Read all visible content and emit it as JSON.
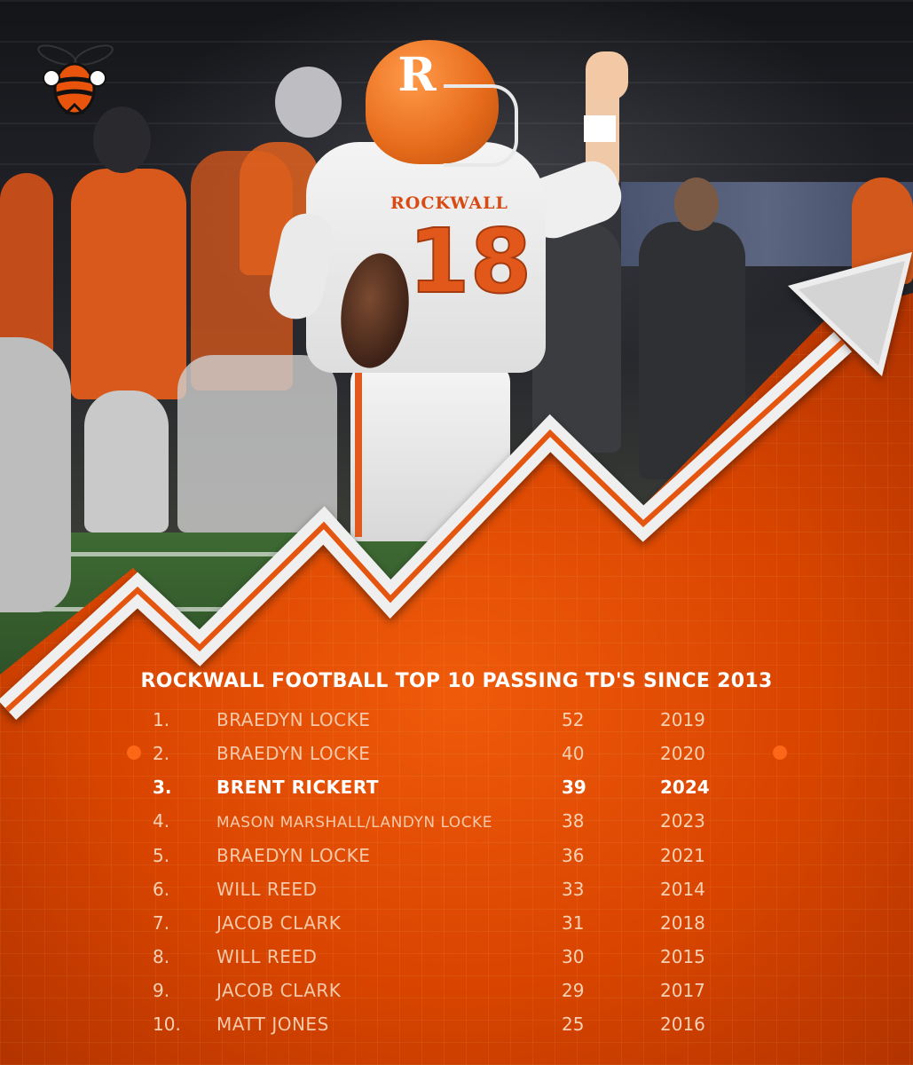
{
  "title": "ROCKWALL FOOTBALL TOP 10 PASSING TD'S SINCE 2013",
  "jersey": {
    "word": "ROCKWALL",
    "number": "18",
    "helmet_letter": "R"
  },
  "logo": {
    "icon": "hornet-logo-icon"
  },
  "colors": {
    "accent": "#e8540c",
    "highlight_text": "#ffffff",
    "muted_text": "#f5c9a9"
  },
  "rows": [
    {
      "rank": "1.",
      "name": "BRAEDYN LOCKE",
      "tds": "52",
      "year": "2019"
    },
    {
      "rank": "2.",
      "name": "BRAEDYN LOCKE",
      "tds": "40",
      "year": "2020"
    },
    {
      "rank": "3.",
      "name": "BRENT RICKERT",
      "tds": "39",
      "year": "2024"
    },
    {
      "rank": "4.",
      "name": "MASON MARSHALL/LANDYN LOCKE",
      "tds": "38",
      "year": "2023"
    },
    {
      "rank": "5.",
      "name": "BRAEDYN LOCKE",
      "tds": "36",
      "year": "2021"
    },
    {
      "rank": "6.",
      "name": "WILL REED",
      "tds": "33",
      "year": "2014"
    },
    {
      "rank": "7.",
      "name": "JACOB CLARK",
      "tds": "31",
      "year": "2018"
    },
    {
      "rank": "8.",
      "name": "WILL REED",
      "tds": "30",
      "year": "2015"
    },
    {
      "rank": "9.",
      "name": "JACOB CLARK",
      "tds": "29",
      "year": "2017"
    },
    {
      "rank": "10.",
      "name": "MATT JONES",
      "tds": "25",
      "year": "2016"
    }
  ]
}
